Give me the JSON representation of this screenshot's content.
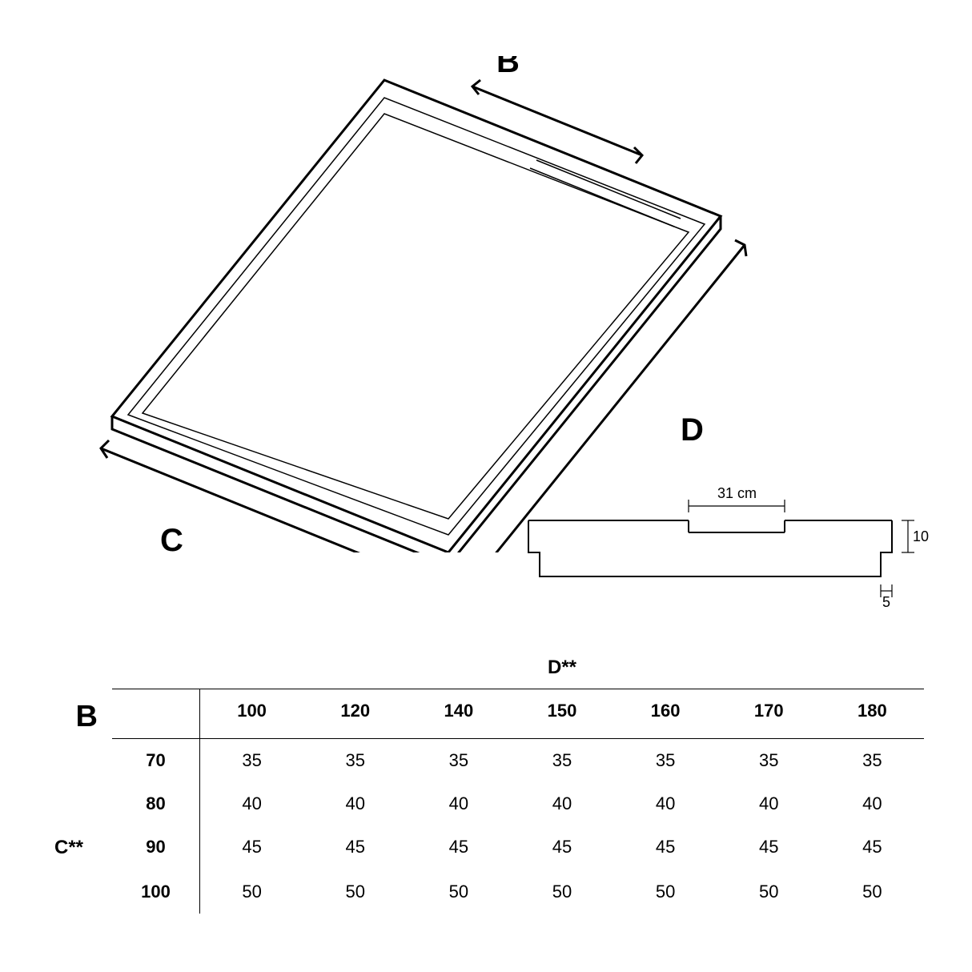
{
  "diagram": {
    "labels": {
      "B": "B",
      "C": "C",
      "D": "D"
    },
    "stroke_color": "#000000",
    "stroke_width_outer": 3,
    "stroke_width_inner": 1.5,
    "background": "#ffffff"
  },
  "section": {
    "width_label": "31 cm",
    "height_label": "10",
    "foot_label": "5",
    "stroke_color": "#000000",
    "stroke_width": 2
  },
  "table": {
    "col_axis_label": "D**",
    "row_axis_label": "C**",
    "corner_label": "B",
    "cols": [
      "100",
      "120",
      "140",
      "150",
      "160",
      "170",
      "180"
    ],
    "rows": [
      {
        "head": "70",
        "vals": [
          "35",
          "35",
          "35",
          "35",
          "35",
          "35",
          "35"
        ]
      },
      {
        "head": "80",
        "vals": [
          "40",
          "40",
          "40",
          "40",
          "40",
          "40",
          "40"
        ]
      },
      {
        "head": "90",
        "vals": [
          "45",
          "45",
          "45",
          "45",
          "45",
          "45",
          "45"
        ]
      },
      {
        "head": "100",
        "vals": [
          "50",
          "50",
          "50",
          "50",
          "50",
          "50",
          "50"
        ]
      }
    ],
    "border_color": "#000000",
    "font_size_body": 22,
    "font_size_head": 22,
    "font_size_axis": 24,
    "font_size_corner": 38
  }
}
